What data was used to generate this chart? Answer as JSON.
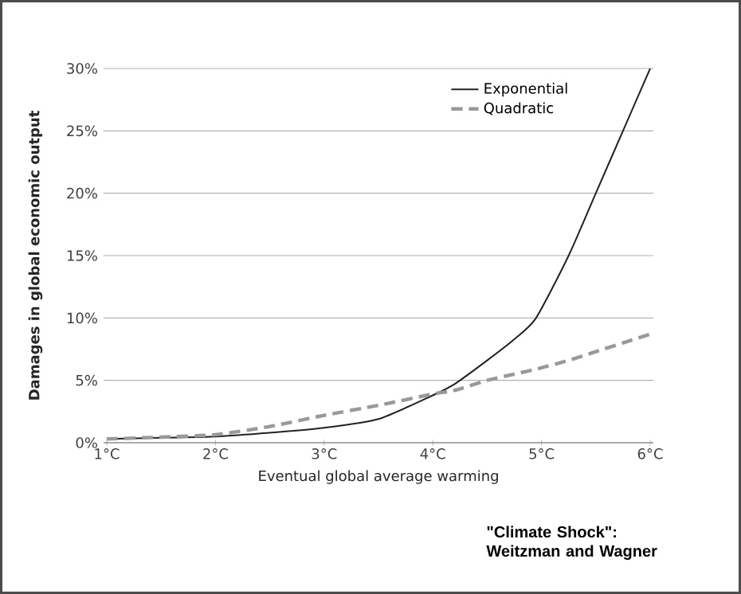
{
  "chart_data": {
    "type": "line",
    "xlabel": "Eventual global average warming",
    "ylabel": "Damages in global economic output",
    "x": [
      1,
      1.5,
      2,
      2.5,
      3,
      3.5,
      4,
      4.2,
      4.5,
      4.75,
      4.95,
      5.25,
      5.5,
      5.75,
      6
    ],
    "series": [
      {
        "name": "Exponential",
        "color": "#222222",
        "line_style": "solid",
        "values": [
          0.3,
          0.4,
          0.5,
          0.8,
          1.2,
          1.9,
          3.8,
          4.7,
          6.6,
          8.3,
          10,
          15,
          20,
          25,
          30
        ]
      },
      {
        "name": "Quadratic",
        "color": "#999999",
        "line_style": "dashed",
        "values": [
          0.3,
          0.45,
          0.65,
          1.3,
          2.2,
          3.0,
          3.9,
          4.2,
          5.0,
          5.5,
          5.9,
          6.6,
          7.3,
          8.0,
          8.7
        ]
      }
    ],
    "xlim": [
      1,
      6
    ],
    "ylim": [
      0,
      30
    ],
    "xticks": [
      {
        "value": 1,
        "label": "1°C"
      },
      {
        "value": 2,
        "label": "2°C"
      },
      {
        "value": 3,
        "label": "3°C"
      },
      {
        "value": 4,
        "label": "4°C"
      },
      {
        "value": 5,
        "label": "5°C"
      },
      {
        "value": 6,
        "label": "6°C"
      }
    ],
    "yticks": [
      {
        "value": 0,
        "label": "0%"
      },
      {
        "value": 5,
        "label": "5%"
      },
      {
        "value": 10,
        "label": "10%"
      },
      {
        "value": 15,
        "label": "15%"
      },
      {
        "value": 20,
        "label": "20%"
      },
      {
        "value": 25,
        "label": "25%"
      },
      {
        "value": 30,
        "label": "30%"
      }
    ],
    "grid": "y",
    "legend": "top right",
    "marker": "none",
    "annotations": [
      "\"Climate Shock\":\nWeitzman and Wagner"
    ]
  }
}
